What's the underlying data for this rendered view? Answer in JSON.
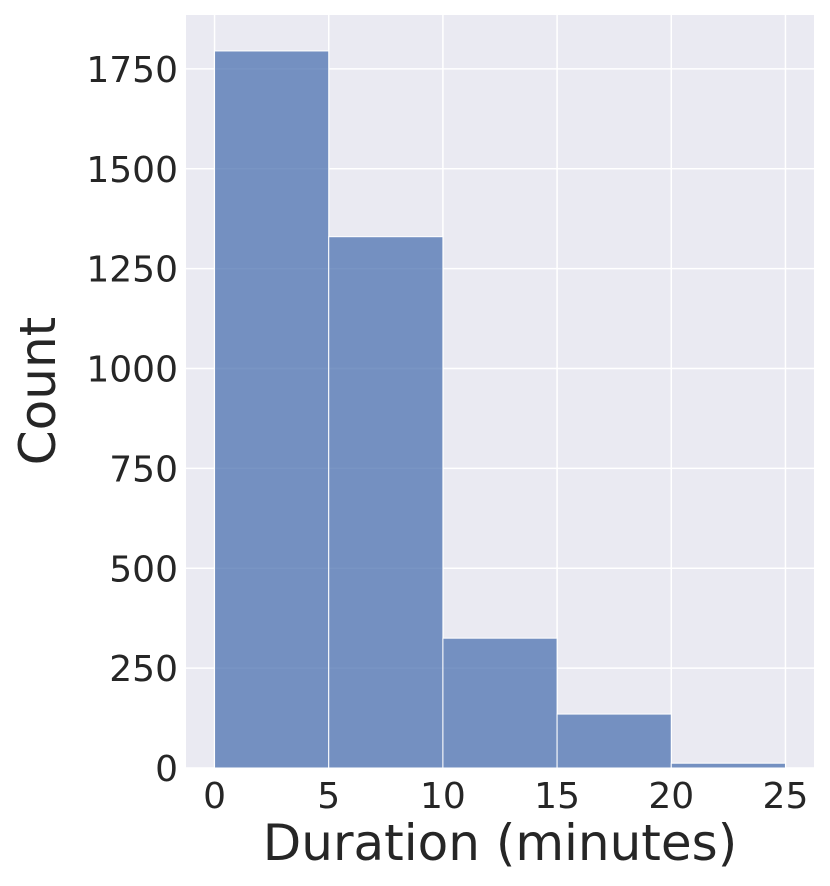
{
  "chart_data": {
    "type": "histogram",
    "x_label": "Duration (minutes)",
    "y_label": "Count",
    "bins": [
      0,
      5,
      10,
      15,
      20,
      25
    ],
    "values": [
      1795,
      1330,
      325,
      135,
      12
    ],
    "color": "#4c72b0",
    "xlim": [
      -1.25,
      26.25
    ],
    "xticks": [
      0,
      5,
      10,
      15,
      20,
      25
    ],
    "ylim": [
      0,
      1885
    ],
    "yticks": [
      0,
      250,
      500,
      750,
      1000,
      1250,
      1500,
      1750
    ],
    "grid": true
  }
}
